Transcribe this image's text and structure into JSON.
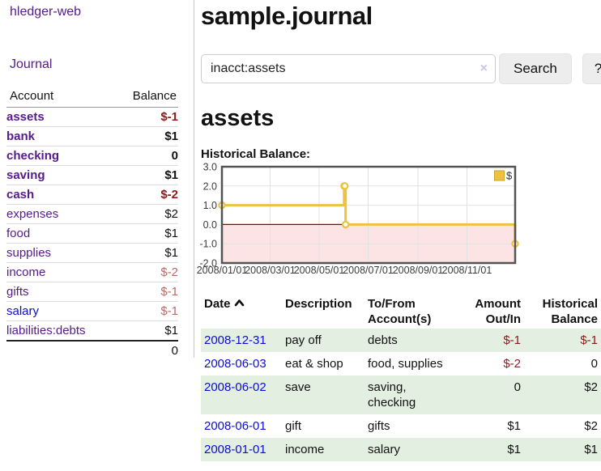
{
  "colors": {
    "accent_purple": "#551a8b",
    "link_blue": "#0b0bdd",
    "negative_dark": "#8b1a1a",
    "negative_soft": "#b96a6a",
    "row_stripe_green": "#e3efe0",
    "series_gold": "#edc240",
    "negative_region_pink": "#fde4e4",
    "zero_line_red": "#8b0000"
  },
  "app": {
    "title": "hledger-web"
  },
  "sidebar": {
    "journal_link": "Journal",
    "header": {
      "account": "Account",
      "balance": "Balance"
    },
    "accounts": [
      {
        "name": "assets",
        "balance": "$-1"
      },
      {
        "name": "bank",
        "balance": "$1"
      },
      {
        "name": "checking",
        "balance": "0"
      },
      {
        "name": "saving",
        "balance": "$1"
      },
      {
        "name": "cash",
        "balance": "$-2"
      },
      {
        "name": "expenses",
        "balance": "$2"
      },
      {
        "name": "food",
        "balance": "$1"
      },
      {
        "name": "supplies",
        "balance": "$1"
      },
      {
        "name": "income",
        "balance": "$-2"
      },
      {
        "name": "gifts",
        "balance": "$-1"
      },
      {
        "name": "salary",
        "balance": "$-1"
      },
      {
        "name": "liabilities:debts",
        "balance": "$1"
      }
    ],
    "total": "0"
  },
  "main": {
    "title": "sample.journal",
    "search": {
      "value": "inacct:assets",
      "clear_icon": "×",
      "button": "Search",
      "help_button": "?"
    },
    "account_heading": "assets"
  },
  "chart_data": {
    "type": "line",
    "step": true,
    "title": "Historical Balance:",
    "x_range": [
      "2008/01/01",
      "2008/12/31"
    ],
    "y_range": [
      -2,
      3
    ],
    "y_ticks": [
      "3.0",
      "2.0",
      "1.0",
      "0.0",
      "-1.0",
      "-2.0"
    ],
    "x_ticks": [
      {
        "date": "2008/01/01",
        "label": "2008/01/01"
      },
      {
        "date": "2008/03/01",
        "label": "2008/03/01"
      },
      {
        "date": "2008/05/01",
        "label": "2008/05/01"
      },
      {
        "date": "2008/07/01",
        "label": "2008/07/01"
      },
      {
        "date": "2008/09/01",
        "label": "2008/09/01"
      },
      {
        "date": "2008/11/01",
        "label": "2008/11/01"
      }
    ],
    "negative_region": true,
    "grid": true,
    "legend": {
      "label": "$",
      "position": "top-right"
    },
    "series": [
      {
        "name": "$",
        "color": "#edc240",
        "points": [
          [
            "2008/01/01",
            1
          ],
          [
            "2008/06/01",
            2
          ],
          [
            "2008/06/02",
            2
          ],
          [
            "2008/06/03",
            0
          ],
          [
            "2008/12/31",
            -1
          ]
        ]
      }
    ]
  },
  "register": {
    "headers": {
      "date": "Date",
      "description": "Description",
      "accounts": "To/From Account(s)",
      "amount": "Amount Out/In",
      "balance": "Historical Balance"
    },
    "rows": [
      {
        "date": "2008-12-31",
        "description": "pay off",
        "accounts": "debts",
        "amount": "$-1",
        "balance": "$-1"
      },
      {
        "date": "2008-06-03",
        "description": "eat & shop",
        "accounts": "food, supplies",
        "amount": "$-2",
        "balance": "0"
      },
      {
        "date": "2008-06-02",
        "description": "save",
        "accounts": "saving, checking",
        "amount": "0",
        "balance": "$2"
      },
      {
        "date": "2008-06-01",
        "description": "gift",
        "accounts": "gifts",
        "amount": "$1",
        "balance": "$2"
      },
      {
        "date": "2008-01-01",
        "description": "income",
        "accounts": "salary",
        "amount": "$1",
        "balance": "$1"
      }
    ]
  }
}
